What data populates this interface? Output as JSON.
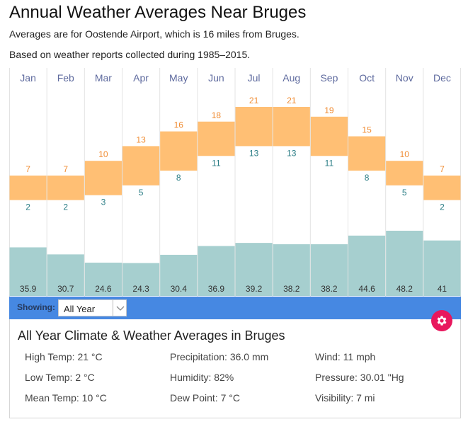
{
  "header": {
    "title": "Annual Weather Averages Near Bruges",
    "subtitle_1": "Averages are for Oostende Airport, which is 16 miles from Bruges.",
    "subtitle_2": "Based on weather reports collected during 1985–2015."
  },
  "chart_data": {
    "type": "bar",
    "title": "Annual Weather Averages Near Bruges",
    "categories": [
      "Jan",
      "Feb",
      "Mar",
      "Apr",
      "May",
      "Jun",
      "Jul",
      "Aug",
      "Sep",
      "Oct",
      "Nov",
      "Dec"
    ],
    "series": [
      {
        "name": "High Temp (°C)",
        "values": [
          7,
          7,
          10,
          13,
          16,
          18,
          21,
          21,
          19,
          15,
          10,
          7
        ]
      },
      {
        "name": "Low Temp (°C)",
        "values": [
          2,
          2,
          3,
          5,
          8,
          11,
          13,
          13,
          11,
          8,
          5,
          2
        ]
      },
      {
        "name": "Precipitation (mm)",
        "values": [
          35.9,
          30.7,
          24.6,
          24.3,
          30.4,
          36.9,
          39.2,
          38.2,
          38.2,
          44.6,
          48.2,
          41
        ]
      }
    ],
    "temp_range_style": "floating bar from low to high",
    "grid": true,
    "colors": {
      "temp_bar": "#ffbf74",
      "high_label": "#f08c33",
      "low_label": "#2a7d85",
      "precip_bar": "#a6cfcf",
      "precip_label": "#333333",
      "month_label": "#5e6a9e",
      "gridline": "#e3e3e3"
    }
  },
  "controls": {
    "showing_label": "Showing:",
    "period_selected": "All Year",
    "bar_color": "#4688e2",
    "gear_color": "#e8175d"
  },
  "summary": {
    "title": "All Year Climate & Weather Averages in Bruges",
    "stats": [
      [
        "High Temp: 21 °C",
        "Precipitation: 36.0 mm",
        "Wind: 11 mph"
      ],
      [
        "Low Temp: 2 °C",
        "Humidity: 82%",
        "Pressure: 30.01 \"Hg"
      ],
      [
        "Mean Temp: 10 °C",
        "Dew Point: 7 °C",
        "Visibility: 7 mi"
      ]
    ]
  }
}
